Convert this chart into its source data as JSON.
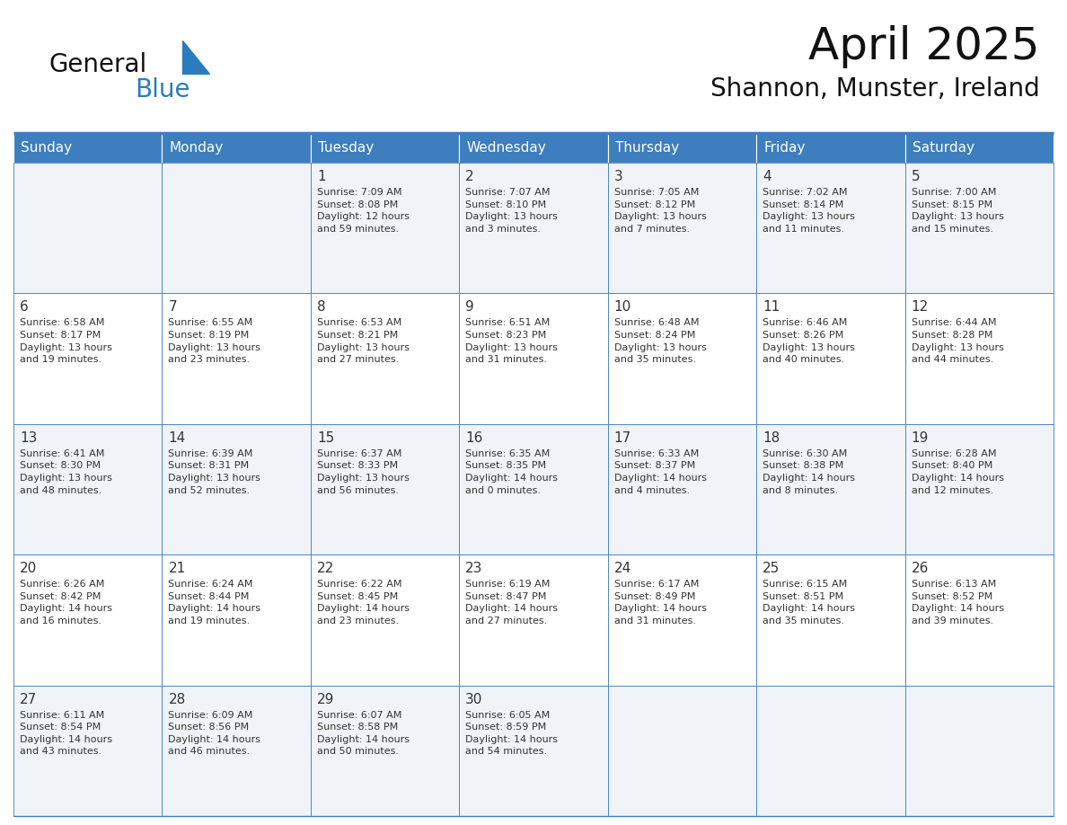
{
  "title": "April 2025",
  "subtitle": "Shannon, Munster, Ireland",
  "header_bg": "#3d7ebf",
  "header_text_color": "#FFFFFF",
  "cell_bg_odd": "#f0f4f8",
  "cell_bg_even": "#FFFFFF",
  "text_color": "#333333",
  "border_color": "#3d7ebf",
  "days_of_week": [
    "Sunday",
    "Monday",
    "Tuesday",
    "Wednesday",
    "Thursday",
    "Friday",
    "Saturday"
  ],
  "weeks": [
    [
      {
        "day": "",
        "info": ""
      },
      {
        "day": "",
        "info": ""
      },
      {
        "day": "1",
        "info": "Sunrise: 7:09 AM\nSunset: 8:08 PM\nDaylight: 12 hours\nand 59 minutes."
      },
      {
        "day": "2",
        "info": "Sunrise: 7:07 AM\nSunset: 8:10 PM\nDaylight: 13 hours\nand 3 minutes."
      },
      {
        "day": "3",
        "info": "Sunrise: 7:05 AM\nSunset: 8:12 PM\nDaylight: 13 hours\nand 7 minutes."
      },
      {
        "day": "4",
        "info": "Sunrise: 7:02 AM\nSunset: 8:14 PM\nDaylight: 13 hours\nand 11 minutes."
      },
      {
        "day": "5",
        "info": "Sunrise: 7:00 AM\nSunset: 8:15 PM\nDaylight: 13 hours\nand 15 minutes."
      }
    ],
    [
      {
        "day": "6",
        "info": "Sunrise: 6:58 AM\nSunset: 8:17 PM\nDaylight: 13 hours\nand 19 minutes."
      },
      {
        "day": "7",
        "info": "Sunrise: 6:55 AM\nSunset: 8:19 PM\nDaylight: 13 hours\nand 23 minutes."
      },
      {
        "day": "8",
        "info": "Sunrise: 6:53 AM\nSunset: 8:21 PM\nDaylight: 13 hours\nand 27 minutes."
      },
      {
        "day": "9",
        "info": "Sunrise: 6:51 AM\nSunset: 8:23 PM\nDaylight: 13 hours\nand 31 minutes."
      },
      {
        "day": "10",
        "info": "Sunrise: 6:48 AM\nSunset: 8:24 PM\nDaylight: 13 hours\nand 35 minutes."
      },
      {
        "day": "11",
        "info": "Sunrise: 6:46 AM\nSunset: 8:26 PM\nDaylight: 13 hours\nand 40 minutes."
      },
      {
        "day": "12",
        "info": "Sunrise: 6:44 AM\nSunset: 8:28 PM\nDaylight: 13 hours\nand 44 minutes."
      }
    ],
    [
      {
        "day": "13",
        "info": "Sunrise: 6:41 AM\nSunset: 8:30 PM\nDaylight: 13 hours\nand 48 minutes."
      },
      {
        "day": "14",
        "info": "Sunrise: 6:39 AM\nSunset: 8:31 PM\nDaylight: 13 hours\nand 52 minutes."
      },
      {
        "day": "15",
        "info": "Sunrise: 6:37 AM\nSunset: 8:33 PM\nDaylight: 13 hours\nand 56 minutes."
      },
      {
        "day": "16",
        "info": "Sunrise: 6:35 AM\nSunset: 8:35 PM\nDaylight: 14 hours\nand 0 minutes."
      },
      {
        "day": "17",
        "info": "Sunrise: 6:33 AM\nSunset: 8:37 PM\nDaylight: 14 hours\nand 4 minutes."
      },
      {
        "day": "18",
        "info": "Sunrise: 6:30 AM\nSunset: 8:38 PM\nDaylight: 14 hours\nand 8 minutes."
      },
      {
        "day": "19",
        "info": "Sunrise: 6:28 AM\nSunset: 8:40 PM\nDaylight: 14 hours\nand 12 minutes."
      }
    ],
    [
      {
        "day": "20",
        "info": "Sunrise: 6:26 AM\nSunset: 8:42 PM\nDaylight: 14 hours\nand 16 minutes."
      },
      {
        "day": "21",
        "info": "Sunrise: 6:24 AM\nSunset: 8:44 PM\nDaylight: 14 hours\nand 19 minutes."
      },
      {
        "day": "22",
        "info": "Sunrise: 6:22 AM\nSunset: 8:45 PM\nDaylight: 14 hours\nand 23 minutes."
      },
      {
        "day": "23",
        "info": "Sunrise: 6:19 AM\nSunset: 8:47 PM\nDaylight: 14 hours\nand 27 minutes."
      },
      {
        "day": "24",
        "info": "Sunrise: 6:17 AM\nSunset: 8:49 PM\nDaylight: 14 hours\nand 31 minutes."
      },
      {
        "day": "25",
        "info": "Sunrise: 6:15 AM\nSunset: 8:51 PM\nDaylight: 14 hours\nand 35 minutes."
      },
      {
        "day": "26",
        "info": "Sunrise: 6:13 AM\nSunset: 8:52 PM\nDaylight: 14 hours\nand 39 minutes."
      }
    ],
    [
      {
        "day": "27",
        "info": "Sunrise: 6:11 AM\nSunset: 8:54 PM\nDaylight: 14 hours\nand 43 minutes."
      },
      {
        "day": "28",
        "info": "Sunrise: 6:09 AM\nSunset: 8:56 PM\nDaylight: 14 hours\nand 46 minutes."
      },
      {
        "day": "29",
        "info": "Sunrise: 6:07 AM\nSunset: 8:58 PM\nDaylight: 14 hours\nand 50 minutes."
      },
      {
        "day": "30",
        "info": "Sunrise: 6:05 AM\nSunset: 8:59 PM\nDaylight: 14 hours\nand 54 minutes."
      },
      {
        "day": "",
        "info": ""
      },
      {
        "day": "",
        "info": ""
      },
      {
        "day": "",
        "info": ""
      }
    ]
  ],
  "logo_text1": "General",
  "logo_text2": "Blue",
  "logo_color1": "#111111",
  "logo_color2": "#2b7bbf",
  "title_fontsize": 36,
  "subtitle_fontsize": 20,
  "header_fontsize": 11,
  "day_num_fontsize": 11,
  "cell_text_fontsize": 8.0
}
